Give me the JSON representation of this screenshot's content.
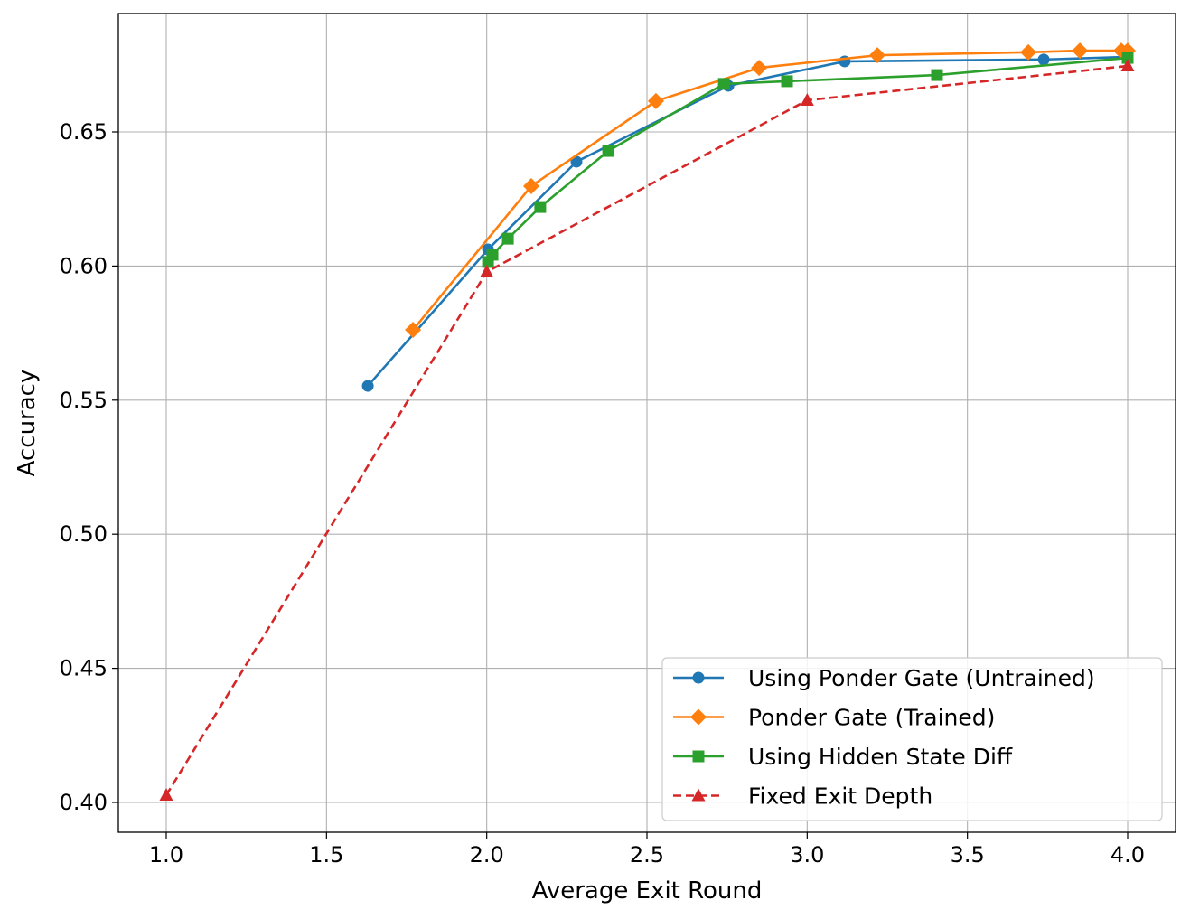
{
  "chart_data": {
    "type": "line",
    "title": "",
    "xlabel": "Average Exit Round",
    "ylabel": "Accuracy",
    "xlim": [
      0.85,
      4.15
    ],
    "ylim": [
      0.389,
      0.694
    ],
    "xticks": [
      "1.0",
      "1.5",
      "2.0",
      "2.5",
      "3.0",
      "3.5",
      "4.0"
    ],
    "yticks": [
      "0.40",
      "0.45",
      "0.50",
      "0.55",
      "0.60",
      "0.65"
    ],
    "grid": true,
    "legend_position": "lower-right",
    "series": [
      {
        "name": "Using Ponder Gate (Untrained)",
        "color": "#1f77b4",
        "marker": "circle",
        "dash": false,
        "x": [
          1.629,
          2.004,
          2.28,
          2.754,
          3.117,
          3.738,
          4.0
        ],
        "y": [
          0.5553,
          0.6062,
          0.6389,
          0.6672,
          0.6763,
          0.677,
          0.678
        ]
      },
      {
        "name": "Ponder Gate (Trained)",
        "color": "#ff7f0e",
        "marker": "diamond",
        "dash": false,
        "x": [
          1.77,
          2.139,
          2.528,
          2.85,
          3.219,
          3.69,
          3.851,
          3.98,
          4.0
        ],
        "y": [
          0.5762,
          0.6298,
          0.6615,
          0.6739,
          0.6786,
          0.6797,
          0.6803,
          0.6803,
          0.6803
        ]
      },
      {
        "name": "Using Hidden State Diff",
        "color": "#2ca02c",
        "marker": "square",
        "dash": false,
        "x": [
          2.004,
          2.018,
          2.066,
          2.167,
          2.379,
          2.74,
          2.937,
          3.405,
          4.0
        ],
        "y": [
          0.6015,
          0.6042,
          0.6102,
          0.622,
          0.6429,
          0.6679,
          0.6689,
          0.6712,
          0.6776
        ]
      },
      {
        "name": "Fixed Exit Depth",
        "color": "#d62728",
        "marker": "triangle",
        "dash": true,
        "x": [
          1.0,
          2.0,
          3.0,
          4.0
        ],
        "y": [
          0.4027,
          0.5978,
          0.6618,
          0.6746
        ]
      }
    ]
  }
}
